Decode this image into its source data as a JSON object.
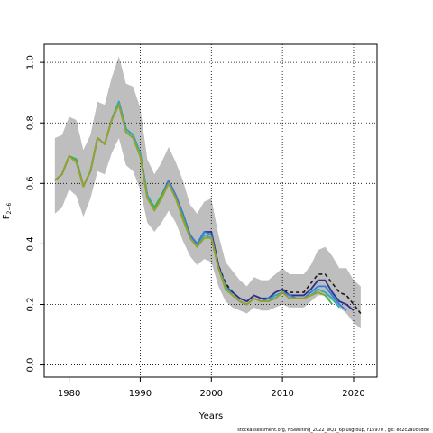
{
  "chart_data": {
    "type": "line",
    "xlabel": "Years",
    "ylabel_main": "F",
    "ylabel_sub": "2−6",
    "footnote": "stockassessment.org, NSwhiting_2022_wQ1_6plusgroup, r15970 , git: ec2c2a0c6dde",
    "xlim": [
      1976.5,
      2023.3
    ],
    "ylim": [
      -0.04,
      1.06
    ],
    "xticks": [
      1980,
      1990,
      2000,
      2010,
      2020
    ],
    "yticks": [
      0.0,
      0.2,
      0.4,
      0.6,
      0.8,
      1.0
    ],
    "ytick_labels": [
      "0.0",
      "0.2",
      "0.4",
      "0.6",
      "0.8",
      "1.0"
    ],
    "grid": true,
    "confidence_band": {
      "color": "#bebebe",
      "x": [
        1978,
        1979,
        1980,
        1981,
        1982,
        1983,
        1984,
        1985,
        1986,
        1987,
        1988,
        1989,
        1990,
        1991,
        1992,
        1993,
        1994,
        1995,
        1996,
        1997,
        1998,
        1999,
        2000,
        2001,
        2002,
        2003,
        2004,
        2005,
        2006,
        2007,
        2008,
        2009,
        2010,
        2011,
        2012,
        2013,
        2014,
        2015,
        2016,
        2017,
        2018,
        2019,
        2020,
        2021
      ],
      "upper": [
        0.75,
        0.76,
        0.82,
        0.81,
        0.71,
        0.76,
        0.87,
        0.86,
        0.95,
        1.02,
        0.93,
        0.92,
        0.85,
        0.68,
        0.63,
        0.67,
        0.72,
        0.67,
        0.61,
        0.53,
        0.5,
        0.54,
        0.55,
        0.43,
        0.34,
        0.31,
        0.28,
        0.26,
        0.29,
        0.28,
        0.28,
        0.3,
        0.32,
        0.3,
        0.3,
        0.3,
        0.33,
        0.38,
        0.39,
        0.36,
        0.32,
        0.32,
        0.28,
        0.26
      ],
      "lower": [
        0.5,
        0.52,
        0.58,
        0.56,
        0.49,
        0.55,
        0.64,
        0.63,
        0.7,
        0.75,
        0.66,
        0.64,
        0.58,
        0.47,
        0.44,
        0.47,
        0.51,
        0.47,
        0.41,
        0.36,
        0.33,
        0.35,
        0.34,
        0.26,
        0.21,
        0.19,
        0.18,
        0.17,
        0.19,
        0.18,
        0.18,
        0.19,
        0.2,
        0.19,
        0.19,
        0.19,
        0.21,
        0.23,
        0.23,
        0.21,
        0.19,
        0.17,
        0.14,
        0.12
      ]
    },
    "series": [
      {
        "color": "#1a1a1a",
        "dashed": true,
        "x": [
          1978,
          1979,
          1980,
          1981,
          1982,
          1983,
          1984,
          1985,
          1986,
          1987,
          1988,
          1989,
          1990,
          1991,
          1992,
          1993,
          1994,
          1995,
          1996,
          1997,
          1998,
          1999,
          2000,
          2001,
          2002,
          2003,
          2004,
          2005,
          2006,
          2007,
          2008,
          2009,
          2010,
          2011,
          2012,
          2013,
          2014,
          2015,
          2016,
          2017,
          2018,
          2019,
          2020,
          2021
        ],
        "y": [
          0.61,
          0.63,
          0.69,
          0.68,
          0.59,
          0.64,
          0.75,
          0.73,
          0.81,
          0.87,
          0.78,
          0.76,
          0.7,
          0.56,
          0.52,
          0.56,
          0.61,
          0.56,
          0.5,
          0.43,
          0.4,
          0.44,
          0.44,
          0.33,
          0.27,
          0.24,
          0.22,
          0.21,
          0.23,
          0.22,
          0.22,
          0.24,
          0.25,
          0.24,
          0.24,
          0.24,
          0.27,
          0.3,
          0.3,
          0.27,
          0.24,
          0.23,
          0.2,
          0.17
        ]
      },
      {
        "color": "#303090",
        "dashed": false,
        "x": [
          1978,
          1979,
          1980,
          1981,
          1982,
          1983,
          1984,
          1985,
          1986,
          1987,
          1988,
          1989,
          1990,
          1991,
          1992,
          1993,
          1994,
          1995,
          1996,
          1997,
          1998,
          1999,
          2000,
          2001,
          2002,
          2003,
          2004,
          2005,
          2006,
          2007,
          2008,
          2009,
          2010,
          2011,
          2012,
          2013,
          2014,
          2015,
          2016,
          2017,
          2018,
          2019,
          2020
        ],
        "y": [
          0.61,
          0.63,
          0.69,
          0.68,
          0.59,
          0.64,
          0.75,
          0.73,
          0.81,
          0.87,
          0.78,
          0.76,
          0.7,
          0.56,
          0.52,
          0.56,
          0.61,
          0.56,
          0.5,
          0.43,
          0.4,
          0.44,
          0.44,
          0.33,
          0.26,
          0.24,
          0.22,
          0.21,
          0.23,
          0.22,
          0.22,
          0.24,
          0.25,
          0.23,
          0.23,
          0.23,
          0.25,
          0.28,
          0.28,
          0.24,
          0.21,
          0.2,
          0.18
        ]
      },
      {
        "color": "#3a7ad8",
        "dashed": false,
        "x": [
          1978,
          1979,
          1980,
          1981,
          1982,
          1983,
          1984,
          1985,
          1986,
          1987,
          1988,
          1989,
          1990,
          1991,
          1992,
          1993,
          1994,
          1995,
          1996,
          1997,
          1998,
          1999,
          2000,
          2001,
          2002,
          2003,
          2004,
          2005,
          2006,
          2007,
          2008,
          2009,
          2010,
          2011,
          2012,
          2013,
          2014,
          2015,
          2016,
          2017,
          2018,
          2019
        ],
        "y": [
          0.61,
          0.63,
          0.69,
          0.68,
          0.59,
          0.64,
          0.75,
          0.73,
          0.81,
          0.87,
          0.78,
          0.76,
          0.7,
          0.56,
          0.52,
          0.56,
          0.61,
          0.56,
          0.5,
          0.43,
          0.4,
          0.44,
          0.43,
          0.32,
          0.26,
          0.23,
          0.21,
          0.2,
          0.22,
          0.21,
          0.22,
          0.23,
          0.24,
          0.23,
          0.22,
          0.22,
          0.24,
          0.26,
          0.26,
          0.23,
          0.2,
          0.18
        ]
      },
      {
        "color": "#2ab0b0",
        "dashed": false,
        "x": [
          1978,
          1979,
          1980,
          1981,
          1982,
          1983,
          1984,
          1985,
          1986,
          1987,
          1988,
          1989,
          1990,
          1991,
          1992,
          1993,
          1994,
          1995,
          1996,
          1997,
          1998,
          1999,
          2000,
          2001,
          2002,
          2003,
          2004,
          2005,
          2006,
          2007,
          2008,
          2009,
          2010,
          2011,
          2012,
          2013,
          2014,
          2015,
          2016,
          2017,
          2018
        ],
        "y": [
          0.61,
          0.63,
          0.69,
          0.68,
          0.59,
          0.64,
          0.75,
          0.73,
          0.81,
          0.87,
          0.78,
          0.76,
          0.7,
          0.56,
          0.52,
          0.56,
          0.6,
          0.55,
          0.49,
          0.42,
          0.39,
          0.43,
          0.42,
          0.32,
          0.26,
          0.23,
          0.21,
          0.2,
          0.22,
          0.21,
          0.21,
          0.23,
          0.24,
          0.22,
          0.22,
          0.22,
          0.23,
          0.25,
          0.24,
          0.22,
          0.19
        ]
      },
      {
        "color": "#3cb44b",
        "dashed": false,
        "x": [
          1978,
          1979,
          1980,
          1981,
          1982,
          1983,
          1984,
          1985,
          1986,
          1987,
          1988,
          1989,
          1990,
          1991,
          1992,
          1993,
          1994,
          1995,
          1996,
          1997,
          1998,
          1999,
          2000,
          2001,
          2002,
          2003,
          2004,
          2005,
          2006,
          2007,
          2008,
          2009,
          2010,
          2011,
          2012,
          2013,
          2014,
          2015,
          2016,
          2017
        ],
        "y": [
          0.61,
          0.63,
          0.69,
          0.68,
          0.59,
          0.64,
          0.75,
          0.73,
          0.81,
          0.86,
          0.77,
          0.75,
          0.69,
          0.55,
          0.52,
          0.56,
          0.6,
          0.55,
          0.49,
          0.42,
          0.39,
          0.42,
          0.42,
          0.32,
          0.25,
          0.23,
          0.21,
          0.2,
          0.22,
          0.21,
          0.21,
          0.22,
          0.24,
          0.22,
          0.22,
          0.22,
          0.23,
          0.24,
          0.23,
          0.2
        ]
      },
      {
        "color": "#9aa02a",
        "dashed": false,
        "x": [
          1978,
          1979,
          1980,
          1981,
          1982,
          1983,
          1984,
          1985,
          1986,
          1987,
          1988,
          1989,
          1990,
          1991,
          1992,
          1993,
          1994,
          1995,
          1996,
          1997,
          1998,
          1999,
          2000,
          2001,
          2002,
          2003,
          2004,
          2005,
          2006,
          2007,
          2008,
          2009,
          2010,
          2011,
          2012,
          2013,
          2014,
          2015,
          2016
        ],
        "y": [
          0.61,
          0.63,
          0.69,
          0.67,
          0.59,
          0.64,
          0.75,
          0.73,
          0.81,
          0.86,
          0.77,
          0.75,
          0.69,
          0.55,
          0.51,
          0.55,
          0.6,
          0.55,
          0.48,
          0.42,
          0.39,
          0.42,
          0.42,
          0.32,
          0.25,
          0.23,
          0.21,
          0.2,
          0.22,
          0.21,
          0.21,
          0.22,
          0.24,
          0.22,
          0.22,
          0.22,
          0.23,
          0.24,
          0.23
        ]
      }
    ]
  }
}
